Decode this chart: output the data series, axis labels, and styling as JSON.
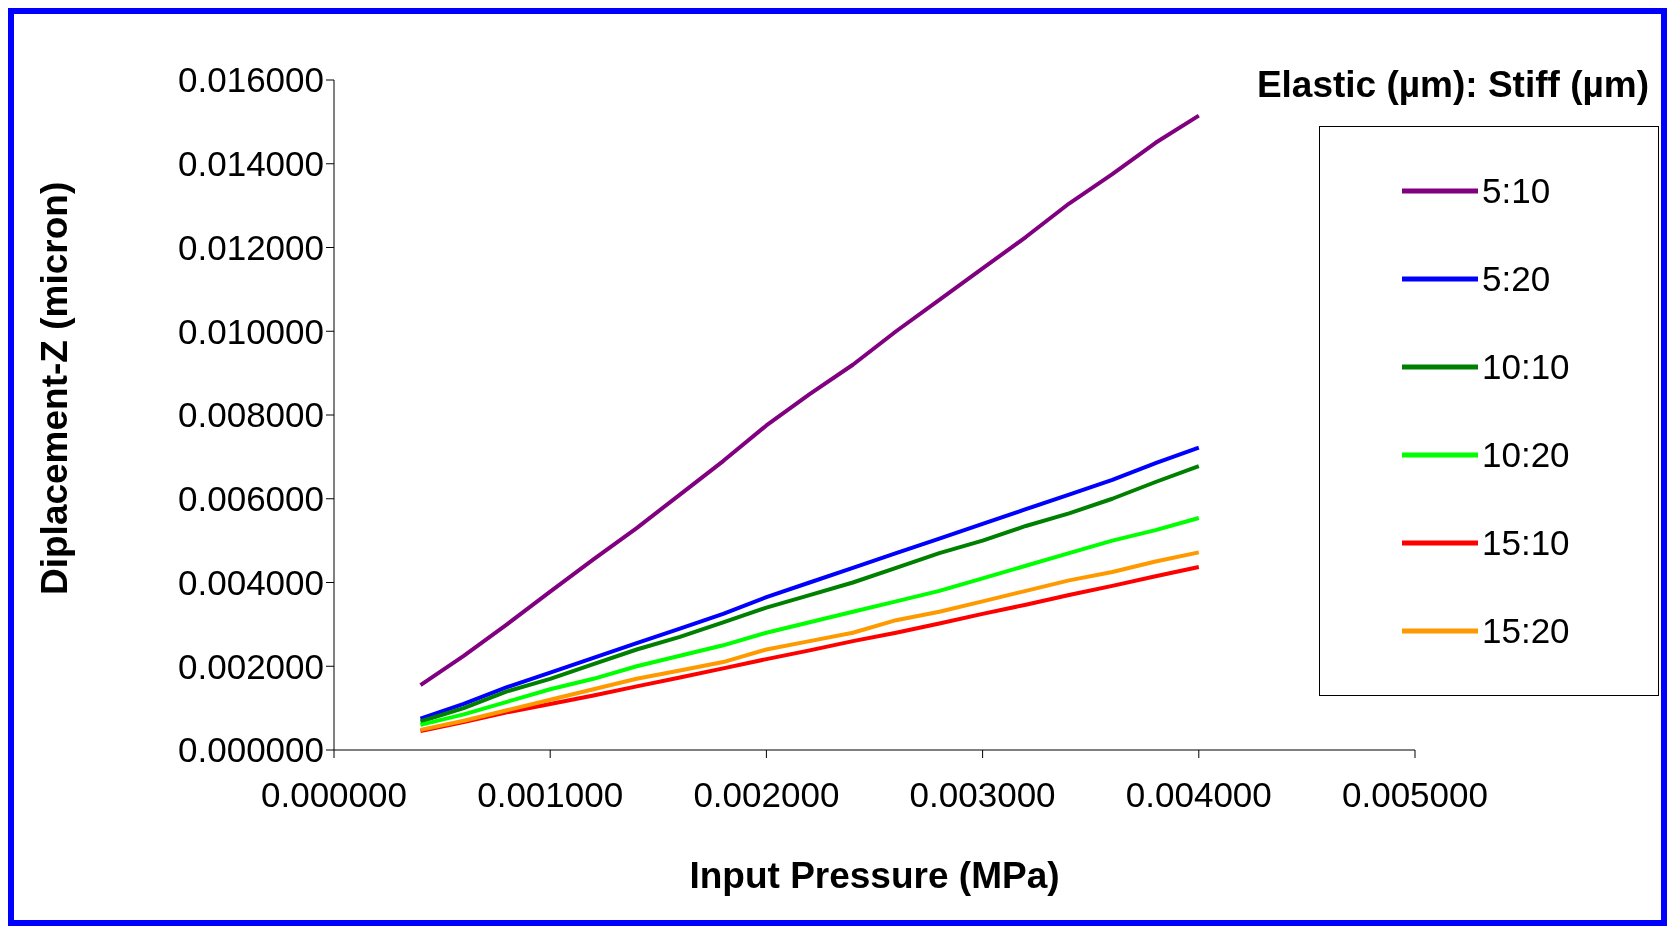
{
  "chart_data": {
    "type": "line",
    "xlabel": "Input Pressure (MPa)",
    "ylabel": "Diplacement-Z (micron)",
    "legend_title": "Elastic (µm): Stiff (µm)",
    "x": [
      0.0004,
      0.0006,
      0.0008,
      0.001,
      0.0012,
      0.0014,
      0.0016,
      0.0018,
      0.002,
      0.0022,
      0.0024,
      0.0026,
      0.0028,
      0.003,
      0.0032,
      0.0034,
      0.0036,
      0.0038,
      0.004
    ],
    "series": [
      {
        "name": "5:10",
        "color": "#800080",
        "values": [
          0.00155,
          0.00225,
          0.003,
          0.00378,
          0.00455,
          0.0053,
          0.0061,
          0.0069,
          0.00775,
          0.0085,
          0.0092,
          0.01,
          0.01075,
          0.0115,
          0.01225,
          0.01305,
          0.01375,
          0.0145,
          0.01515
        ]
      },
      {
        "name": "5:20",
        "color": "#0000ff",
        "values": [
          0.00075,
          0.0011,
          0.0015,
          0.00185,
          0.0022,
          0.00255,
          0.0029,
          0.00325,
          0.00365,
          0.004,
          0.00435,
          0.0047,
          0.00505,
          0.0054,
          0.00575,
          0.0061,
          0.00645,
          0.00685,
          0.00722
        ]
      },
      {
        "name": "10:10",
        "color": "#008000",
        "values": [
          0.00068,
          0.001,
          0.0014,
          0.0017,
          0.00205,
          0.0024,
          0.0027,
          0.00305,
          0.0034,
          0.0037,
          0.004,
          0.00435,
          0.0047,
          0.005,
          0.00535,
          0.00565,
          0.006,
          0.0064,
          0.00678
        ]
      },
      {
        "name": "10:20",
        "color": "#00ff00",
        "values": [
          0.0006,
          0.00085,
          0.00115,
          0.00145,
          0.0017,
          0.002,
          0.00225,
          0.0025,
          0.0028,
          0.00305,
          0.0033,
          0.00355,
          0.0038,
          0.0041,
          0.0044,
          0.0047,
          0.005,
          0.00525,
          0.00554
        ]
      },
      {
        "name": "15:10",
        "color": "#ff0000",
        "values": [
          0.00045,
          0.00067,
          0.0009,
          0.0011,
          0.0013,
          0.00152,
          0.00173,
          0.00195,
          0.00217,
          0.00238,
          0.0026,
          0.0028,
          0.00302,
          0.00325,
          0.00347,
          0.0037,
          0.00392,
          0.00415,
          0.00437
        ]
      },
      {
        "name": "15:20",
        "color": "#ff9900",
        "values": [
          0.00048,
          0.0007,
          0.00095,
          0.0012,
          0.00145,
          0.0017,
          0.0019,
          0.0021,
          0.0024,
          0.0026,
          0.0028,
          0.0031,
          0.0033,
          0.00355,
          0.0038,
          0.00405,
          0.00425,
          0.0045,
          0.00472
        ]
      }
    ],
    "xlim": [
      0,
      0.005
    ],
    "xticks": [
      {
        "value": 0,
        "label": "0.000000"
      },
      {
        "value": 0.001,
        "label": "0.001000"
      },
      {
        "value": 0.002,
        "label": "0.002000"
      },
      {
        "value": 0.003,
        "label": "0.003000"
      },
      {
        "value": 0.004,
        "label": "0.004000"
      },
      {
        "value": 0.005,
        "label": "0.005000"
      }
    ],
    "ylim": [
      0,
      0.016
    ],
    "yticks": [
      {
        "value": 0,
        "label": "0.000000"
      },
      {
        "value": 0.002,
        "label": "0.002000"
      },
      {
        "value": 0.004,
        "label": "0.004000"
      },
      {
        "value": 0.006,
        "label": "0.006000"
      },
      {
        "value": 0.008,
        "label": "0.008000"
      },
      {
        "value": 0.01,
        "label": "0.010000"
      },
      {
        "value": 0.012,
        "label": "0.012000"
      },
      {
        "value": 0.014,
        "label": "0.014000"
      },
      {
        "value": 0.016,
        "label": "0.016000"
      }
    ],
    "grid": false,
    "legend": "top right",
    "marker": "none",
    "line_style": "solid"
  }
}
